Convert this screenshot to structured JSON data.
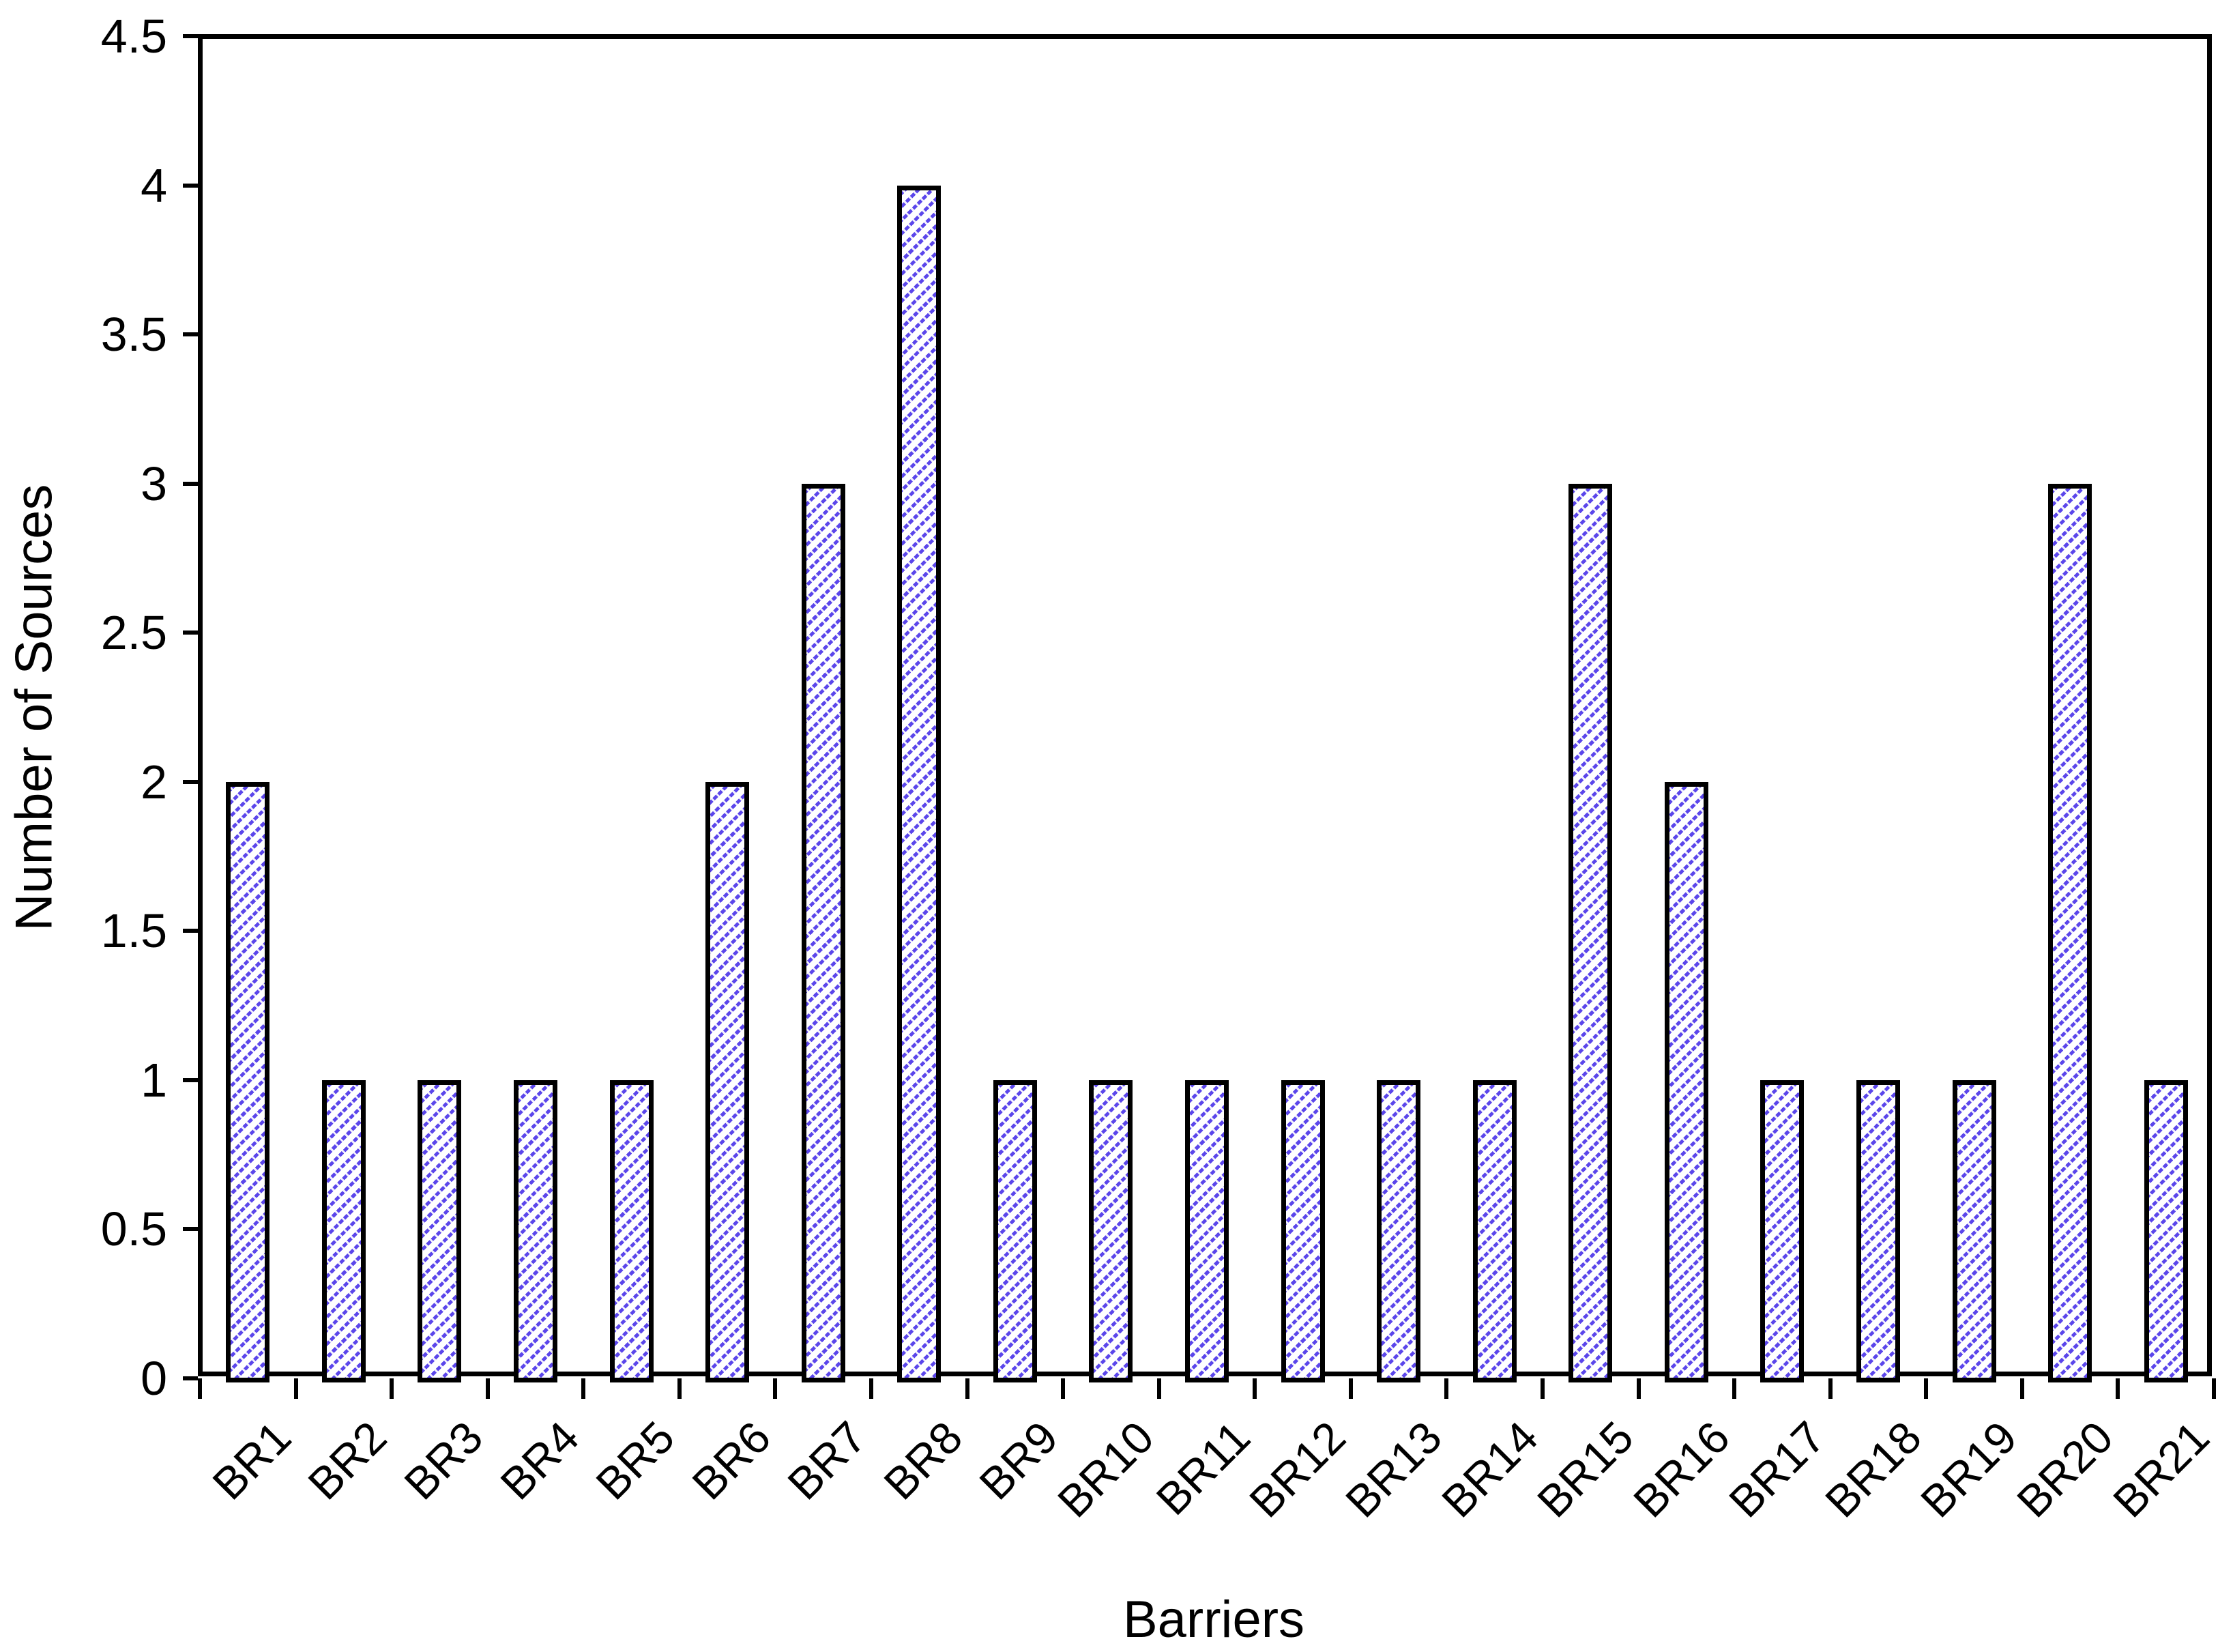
{
  "chart_data": {
    "type": "bar",
    "title": "",
    "xlabel": "Barriers",
    "ylabel": "Number of Sources",
    "categories": [
      "BR1",
      "BR2",
      "BR3",
      "BR4",
      "BR5",
      "BR6",
      "BR7",
      "BR8",
      "BR9",
      "BR10",
      "BR11",
      "BR12",
      "BR13",
      "BR14",
      "BR15",
      "BR16",
      "BR17",
      "BR18",
      "BR19",
      "BR20",
      "BR21"
    ],
    "values": [
      2,
      1,
      1,
      1,
      1,
      2,
      3,
      4,
      1,
      1,
      1,
      1,
      1,
      1,
      3,
      2,
      1,
      1,
      1,
      3,
      1
    ],
    "ylim": [
      0,
      4.5
    ],
    "ytick_step": 0.5,
    "ytick_labels": [
      "0",
      "0.5",
      "1",
      "1.5",
      "2",
      "2.5",
      "3",
      "3.5",
      "4",
      "4.5"
    ],
    "grid": false,
    "legend_position": "none",
    "bar_fill_style": "dotted-diagonal-hatch",
    "hatch_color": "#5B46EB",
    "bar_border_color": "#000000",
    "axis_color": "#000000",
    "background_color": "#ffffff"
  }
}
